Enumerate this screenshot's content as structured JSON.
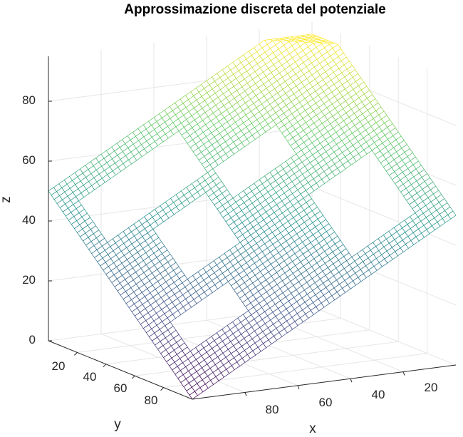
{
  "chart_data": {
    "type": "surface",
    "title": "Approssimazione discreta del potenziale",
    "xlabel": "x",
    "ylabel": "y",
    "zlabel": "z",
    "x_ticks": [
      "20",
      "40",
      "60",
      "80"
    ],
    "y_ticks": [
      "20",
      "40",
      "60",
      "80"
    ],
    "z_ticks": [
      "0",
      "20",
      "40",
      "60",
      "80"
    ],
    "xlim": [
      0,
      100
    ],
    "ylim": [
      0,
      100
    ],
    "zlim": [
      0,
      90
    ],
    "grid": true,
    "colormap": [
      "#440154",
      "#3b528b",
      "#21918c",
      "#5ec962",
      "#fde725"
    ],
    "surface": {
      "description_of_function": "approx. linear potential rising from corner (x=100,y=100) to far edges, with rectangular holes",
      "z_max": 91
    }
  }
}
